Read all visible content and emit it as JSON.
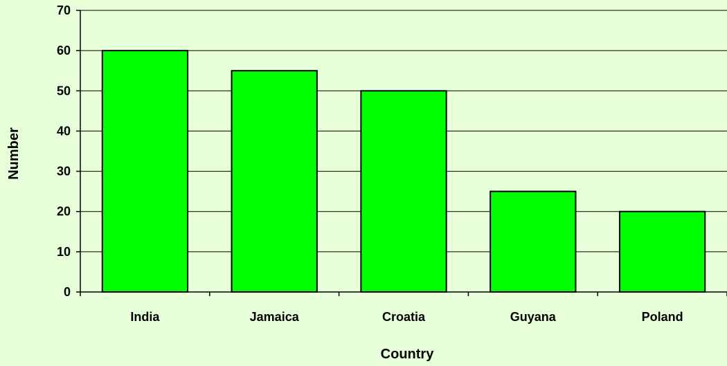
{
  "chart_data": {
    "type": "bar",
    "title": "",
    "xlabel": "Country",
    "ylabel": "Number",
    "categories": [
      "India",
      "Jamaica",
      "Croatia",
      "Guyana",
      "Poland"
    ],
    "values": [
      60,
      55,
      50,
      25,
      20
    ],
    "ylim": [
      0,
      70
    ],
    "yticks": [
      0,
      10,
      20,
      30,
      40,
      50,
      60,
      70
    ],
    "grid": true,
    "legend": "none"
  },
  "colors": {
    "background": "#e6ffd9",
    "bar_fill": "#00ff00",
    "bar_stroke": "#000000",
    "gridline": "#000000",
    "axis": "#000000"
  }
}
